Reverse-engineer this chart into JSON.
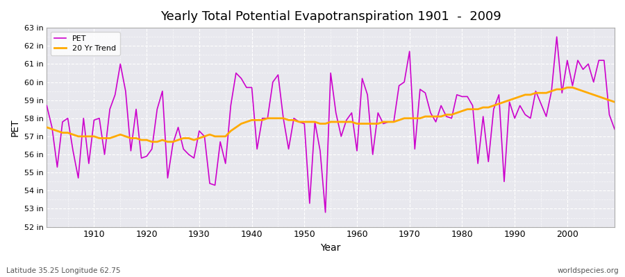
{
  "title": "Yearly Total Potential Evapotranspiration 1901  -  2009",
  "xlabel": "Year",
  "ylabel": "PET",
  "subtitle_left": "Latitude 35.25 Longitude 62.75",
  "subtitle_right": "worldspecies.org",
  "pet_color": "#cc00cc",
  "trend_color": "#ffaa00",
  "fig_facecolor": "#ffffff",
  "axes_facecolor": "#e8e8ee",
  "ylim": [
    52,
    63
  ],
  "yticks": [
    52,
    53,
    54,
    55,
    56,
    57,
    58,
    59,
    60,
    61,
    62,
    63
  ],
  "ytick_labels": [
    "52 in",
    "53 in",
    "54 in",
    "55 in",
    "56 in",
    "57 in",
    "58 in",
    "59 in",
    "60 in",
    "61 in",
    "62 in",
    "63 in"
  ],
  "years": [
    1901,
    1902,
    1903,
    1904,
    1905,
    1906,
    1907,
    1908,
    1909,
    1910,
    1911,
    1912,
    1913,
    1914,
    1915,
    1916,
    1917,
    1918,
    1919,
    1920,
    1921,
    1922,
    1923,
    1924,
    1925,
    1926,
    1927,
    1928,
    1929,
    1930,
    1931,
    1932,
    1933,
    1934,
    1935,
    1936,
    1937,
    1938,
    1939,
    1940,
    1941,
    1942,
    1943,
    1944,
    1945,
    1946,
    1947,
    1948,
    1949,
    1950,
    1951,
    1952,
    1953,
    1954,
    1955,
    1956,
    1957,
    1958,
    1959,
    1960,
    1961,
    1962,
    1963,
    1964,
    1965,
    1966,
    1967,
    1968,
    1969,
    1970,
    1971,
    1972,
    1973,
    1974,
    1975,
    1976,
    1977,
    1978,
    1979,
    1980,
    1981,
    1982,
    1983,
    1984,
    1985,
    1986,
    1987,
    1988,
    1989,
    1990,
    1991,
    1992,
    1993,
    1994,
    1995,
    1996,
    1997,
    1998,
    1999,
    2000,
    2001,
    2002,
    2003,
    2004,
    2005,
    2006,
    2007,
    2008,
    2009
  ],
  "pet_values": [
    58.7,
    57.5,
    55.3,
    57.8,
    58.0,
    56.2,
    54.7,
    58.0,
    55.5,
    57.9,
    58.0,
    56.0,
    58.5,
    59.3,
    61.0,
    59.5,
    56.2,
    58.5,
    55.8,
    55.9,
    56.3,
    58.5,
    59.5,
    54.7,
    56.6,
    57.5,
    56.3,
    56.0,
    55.8,
    57.3,
    57.0,
    54.4,
    54.3,
    56.7,
    55.5,
    58.7,
    60.5,
    60.2,
    59.7,
    59.7,
    56.3,
    58.0,
    58.0,
    60.0,
    60.4,
    58.0,
    56.3,
    58.0,
    57.8,
    57.7,
    53.3,
    57.8,
    56.2,
    52.8,
    60.5,
    58.3,
    57.0,
    57.9,
    58.3,
    56.2,
    60.2,
    59.3,
    56.0,
    58.3,
    57.7,
    57.8,
    57.8,
    59.8,
    60.0,
    61.7,
    56.3,
    59.6,
    59.4,
    58.3,
    57.8,
    58.7,
    58.1,
    58.0,
    59.3,
    59.2,
    59.2,
    58.7,
    55.5,
    58.1,
    55.6,
    58.5,
    59.3,
    54.5,
    58.9,
    58.0,
    58.7,
    58.2,
    58.0,
    59.5,
    58.8,
    58.1,
    59.5,
    62.5,
    59.4,
    61.2,
    59.8,
    61.2,
    60.7,
    61.0,
    60.0,
    61.2,
    61.2,
    58.2,
    57.4
  ],
  "trend_years": [
    1901,
    1902,
    1903,
    1904,
    1905,
    1906,
    1907,
    1908,
    1909,
    1910,
    1911,
    1912,
    1913,
    1914,
    1915,
    1916,
    1917,
    1918,
    1919,
    1920,
    1921,
    1922,
    1923,
    1924,
    1925,
    1926,
    1927,
    1928,
    1929,
    1930,
    1931,
    1932,
    1933,
    1934,
    1935,
    1936,
    1937,
    1938,
    1939,
    1940,
    1941,
    1942,
    1943,
    1944,
    1945,
    1946,
    1947,
    1948,
    1949,
    1950,
    1951,
    1952,
    1953,
    1954,
    1955,
    1956,
    1957,
    1958,
    1959,
    1960,
    1961,
    1962,
    1963,
    1964,
    1965,
    1966,
    1967,
    1968,
    1969,
    1970,
    1971,
    1972,
    1973,
    1974,
    1975,
    1976,
    1977,
    1978,
    1979,
    1980,
    1981,
    1982,
    1983,
    1984,
    1985,
    1986,
    1987,
    1988,
    1989,
    1990,
    1991,
    1992,
    1993,
    1994,
    1995,
    1996,
    1997,
    1998,
    1999,
    2000,
    2001,
    2002,
    2003,
    2004,
    2005,
    2006,
    2007,
    2008,
    2009
  ],
  "trend_values": [
    57.5,
    57.4,
    57.3,
    57.2,
    57.2,
    57.1,
    57.0,
    57.0,
    57.0,
    57.0,
    56.9,
    56.9,
    56.9,
    57.0,
    57.1,
    57.0,
    56.9,
    56.9,
    56.8,
    56.8,
    56.7,
    56.7,
    56.8,
    56.7,
    56.7,
    56.8,
    56.9,
    56.9,
    56.8,
    56.9,
    57.0,
    57.1,
    57.0,
    57.0,
    57.0,
    57.3,
    57.5,
    57.7,
    57.8,
    57.9,
    57.9,
    57.9,
    58.0,
    58.0,
    58.0,
    58.0,
    57.9,
    57.9,
    57.8,
    57.8,
    57.8,
    57.8,
    57.7,
    57.7,
    57.8,
    57.8,
    57.8,
    57.8,
    57.8,
    57.7,
    57.7,
    57.7,
    57.7,
    57.7,
    57.8,
    57.8,
    57.8,
    57.9,
    58.0,
    58.0,
    58.0,
    58.0,
    58.1,
    58.1,
    58.1,
    58.1,
    58.2,
    58.2,
    58.3,
    58.4,
    58.5,
    58.5,
    58.5,
    58.6,
    58.6,
    58.7,
    58.8,
    58.9,
    59.0,
    59.1,
    59.2,
    59.3,
    59.3,
    59.4,
    59.4,
    59.4,
    59.5,
    59.6,
    59.6,
    59.7,
    59.7,
    59.6,
    59.5,
    59.4,
    59.3,
    59.2,
    59.1,
    59.0,
    58.9
  ]
}
